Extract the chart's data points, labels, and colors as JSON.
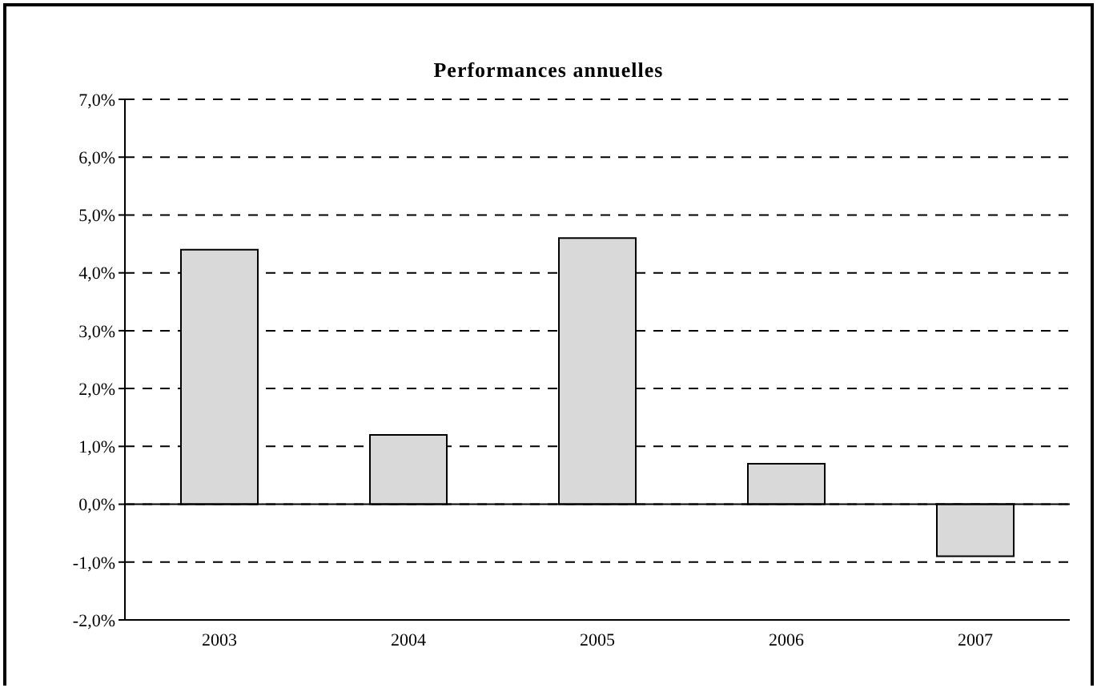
{
  "chart_data": {
    "type": "bar",
    "title": "Performances annuelles",
    "categories": [
      "2003",
      "2004",
      "2005",
      "2006",
      "2007"
    ],
    "values": [
      4.4,
      1.2,
      4.6,
      0.7,
      -0.9
    ],
    "color": "#d9d9d9",
    "ylim": [
      -2,
      7
    ],
    "yticks": [
      {
        "value": -2,
        "label": "-2,0%"
      },
      {
        "value": -1,
        "label": "-1,0%"
      },
      {
        "value": 0,
        "label": "0,0%"
      },
      {
        "value": 1,
        "label": "1,0%"
      },
      {
        "value": 2,
        "label": "2,0%"
      },
      {
        "value": 3,
        "label": "3,0%"
      },
      {
        "value": 4,
        "label": "4,0%"
      },
      {
        "value": 5,
        "label": "5,0%"
      },
      {
        "value": 6,
        "label": "6,0%"
      },
      {
        "value": 7,
        "label": "7,0%"
      }
    ],
    "grid": "y",
    "line_style": "dashed",
    "legend": false
  }
}
